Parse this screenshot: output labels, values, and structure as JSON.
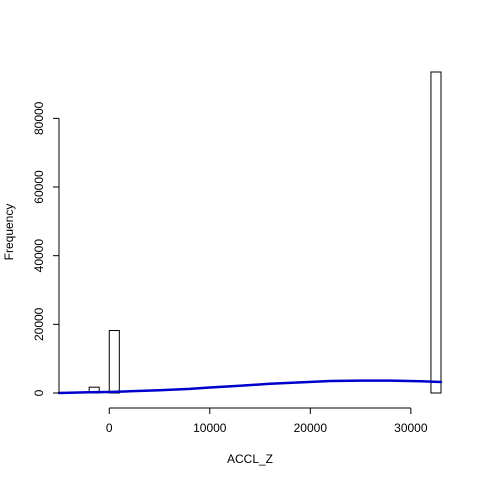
{
  "chart_data": {
    "type": "bar",
    "title": "",
    "xlabel": "ACCL_Z",
    "ylabel": "Frequency",
    "xlim": [
      -5000,
      33000
    ],
    "ylim": [
      0,
      93500
    ],
    "x_ticks": [
      {
        "value": 0,
        "label": "0"
      },
      {
        "value": 10000,
        "label": "10000"
      },
      {
        "value": 20000,
        "label": "20000"
      },
      {
        "value": 30000,
        "label": "30000"
      }
    ],
    "y_ticks": [
      {
        "value": 0,
        "label": "0"
      },
      {
        "value": 20000,
        "label": "20000"
      },
      {
        "value": 40000,
        "label": "40000"
      },
      {
        "value": 60000,
        "label": "60000"
      },
      {
        "value": 80000,
        "label": "80000"
      }
    ],
    "bins": [
      {
        "x0": -2000,
        "x1": -1000,
        "count": 1700
      },
      {
        "x0": 0,
        "x1": 1000,
        "count": 18200
      },
      {
        "x0": 32000,
        "x1": 33000,
        "count": 93500
      }
    ],
    "density_curve": {
      "color": "#0000cc",
      "x": [
        -5000,
        -2000,
        0,
        2000,
        5000,
        8000,
        10000,
        13000,
        16000,
        19000,
        22000,
        25000,
        28000,
        31000,
        33000
      ],
      "y": [
        0,
        200,
        300,
        500,
        800,
        1200,
        1600,
        2100,
        2700,
        3100,
        3500,
        3600,
        3600,
        3400,
        3200
      ]
    },
    "bar_fill": "#ffffff",
    "bar_stroke": "#000000",
    "grid": false,
    "legend": "none"
  }
}
